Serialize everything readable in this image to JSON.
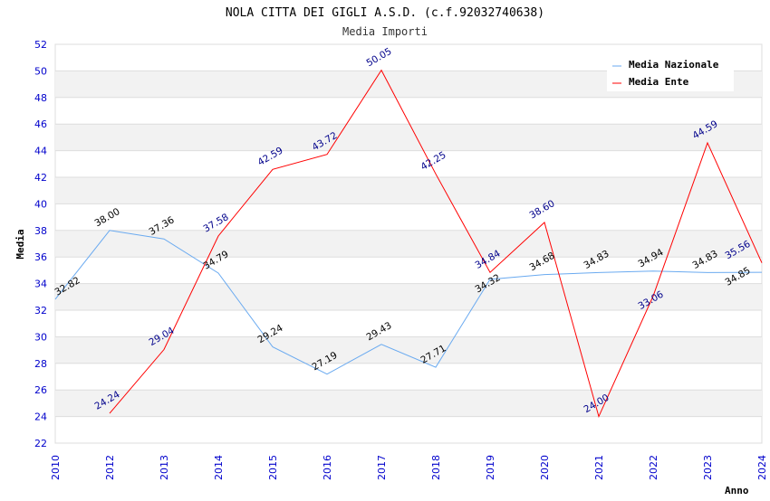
{
  "chart_data": {
    "type": "line",
    "title": "NOLA CITTA DEI GIGLI A.S.D. (c.f.92032740638)",
    "subtitle": "Media Importi",
    "xlabel": "Anno",
    "ylabel": "Media",
    "ylim": [
      22,
      52
    ],
    "yticks": [
      22,
      24,
      26,
      28,
      30,
      32,
      34,
      36,
      38,
      40,
      42,
      44,
      46,
      48,
      50,
      52
    ],
    "categories": [
      "2010",
      "2012",
      "2013",
      "2014",
      "2015",
      "2016",
      "2017",
      "2018",
      "2019",
      "2020",
      "2021",
      "2022",
      "2023",
      "2024"
    ],
    "legend_position": "top-right",
    "series": [
      {
        "name": "Media Nazionale",
        "color": "#6aaaf0",
        "label_color": "#000000",
        "values": [
          32.82,
          38.0,
          37.36,
          34.79,
          29.24,
          27.19,
          29.43,
          27.71,
          34.32,
          34.68,
          34.83,
          34.94,
          34.83,
          34.85
        ]
      },
      {
        "name": "Media Ente",
        "color": "#ff0000",
        "label_color": "#00008b",
        "values": [
          null,
          24.24,
          29.04,
          37.58,
          42.59,
          43.72,
          50.05,
          42.25,
          34.84,
          38.6,
          24.0,
          33.06,
          44.59,
          35.56
        ]
      }
    ]
  }
}
